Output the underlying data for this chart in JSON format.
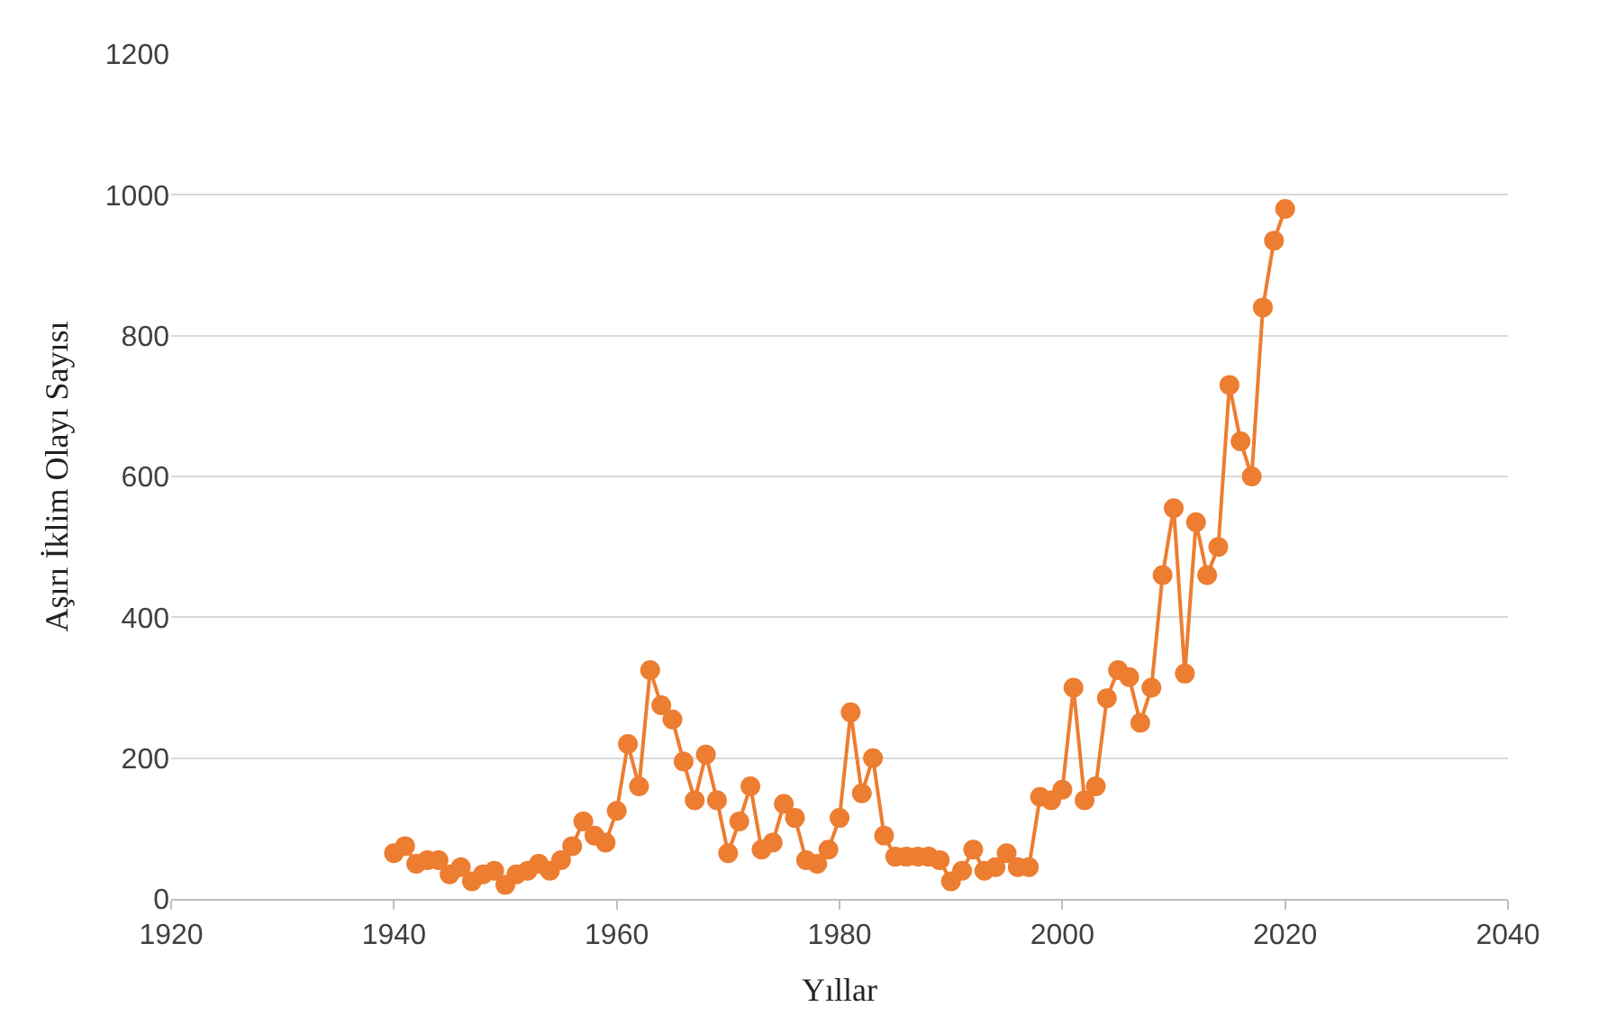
{
  "chart_data": {
    "type": "line",
    "xlabel": "Yıllar",
    "ylabel": "Aşırı İklim Olayı Sayısı",
    "x": [
      1940,
      1941,
      1942,
      1943,
      1944,
      1945,
      1946,
      1947,
      1948,
      1949,
      1950,
      1951,
      1952,
      1953,
      1954,
      1955,
      1956,
      1957,
      1958,
      1959,
      1960,
      1961,
      1962,
      1963,
      1964,
      1965,
      1966,
      1967,
      1968,
      1969,
      1970,
      1971,
      1972,
      1973,
      1974,
      1975,
      1976,
      1977,
      1978,
      1979,
      1980,
      1981,
      1982,
      1983,
      1984,
      1985,
      1986,
      1987,
      1988,
      1989,
      1990,
      1991,
      1992,
      1993,
      1994,
      1995,
      1996,
      1997,
      1998,
      1999,
      2000,
      2001,
      2002,
      2003,
      2004,
      2005,
      2006,
      2007,
      2008,
      2009,
      2010,
      2011,
      2012,
      2013,
      2014,
      2015,
      2016,
      2017,
      2018,
      2019,
      2020
    ],
    "series": [
      {
        "color": "#ed7d31",
        "values": [
          65,
          75,
          50,
          55,
          55,
          35,
          45,
          25,
          35,
          40,
          20,
          35,
          40,
          50,
          40,
          55,
          75,
          110,
          90,
          80,
          125,
          220,
          160,
          325,
          275,
          255,
          195,
          140,
          205,
          140,
          65,
          110,
          160,
          70,
          80,
          135,
          115,
          55,
          50,
          70,
          115,
          265,
          150,
          200,
          90,
          60,
          60,
          60,
          60,
          55,
          25,
          40,
          70,
          40,
          45,
          65,
          45,
          45,
          145,
          140,
          155,
          300,
          140,
          160,
          285,
          325,
          315,
          250,
          300,
          460,
          555,
          320,
          535,
          460,
          500,
          730,
          650,
          600,
          840,
          935,
          980
        ]
      }
    ],
    "xlim": [
      1920,
      2040
    ],
    "xticks": [
      1920,
      1940,
      1960,
      1980,
      2000,
      2020,
      2040
    ],
    "ylim": [
      0,
      1200
    ],
    "yticks": [
      0,
      200,
      400,
      600,
      800,
      1000,
      1200
    ],
    "grid": "y",
    "marker": "circle",
    "line_style": "solid",
    "legend": false
  }
}
